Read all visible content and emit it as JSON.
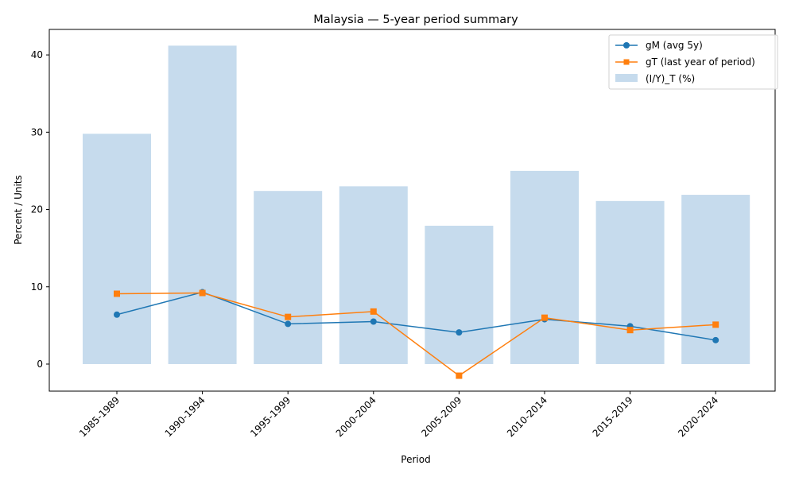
{
  "chart_data": {
    "type": "bar+line",
    "title": "Malaysia — 5-year period summary",
    "xlabel": "Period",
    "ylabel": "Percent / Units",
    "categories": [
      "1985-1989",
      "1990-1994",
      "1995-1999",
      "2000-2004",
      "2005-2009",
      "2010-2014",
      "2015-2019",
      "2020-2024"
    ],
    "ylim": [
      -3.5,
      43.3
    ],
    "yticks": [
      0,
      10,
      20,
      30,
      40
    ],
    "legend_position": "top-right",
    "grid": false,
    "bars": {
      "name": "(I/Y)_T (%)",
      "color": "#c6dbed",
      "values": [
        29.8,
        41.2,
        22.4,
        23.0,
        17.9,
        25.0,
        21.1,
        21.9
      ]
    },
    "series": [
      {
        "name": "gM (avg 5y)",
        "color": "#1f77b4",
        "marker": "circle",
        "values": [
          6.4,
          9.3,
          5.2,
          5.5,
          4.1,
          5.8,
          4.9,
          3.1
        ]
      },
      {
        "name": "gT (last year of period)",
        "color": "#ff7f0e",
        "marker": "square",
        "values": [
          9.1,
          9.2,
          6.1,
          6.8,
          -1.5,
          6.0,
          4.4,
          5.1
        ]
      }
    ]
  }
}
